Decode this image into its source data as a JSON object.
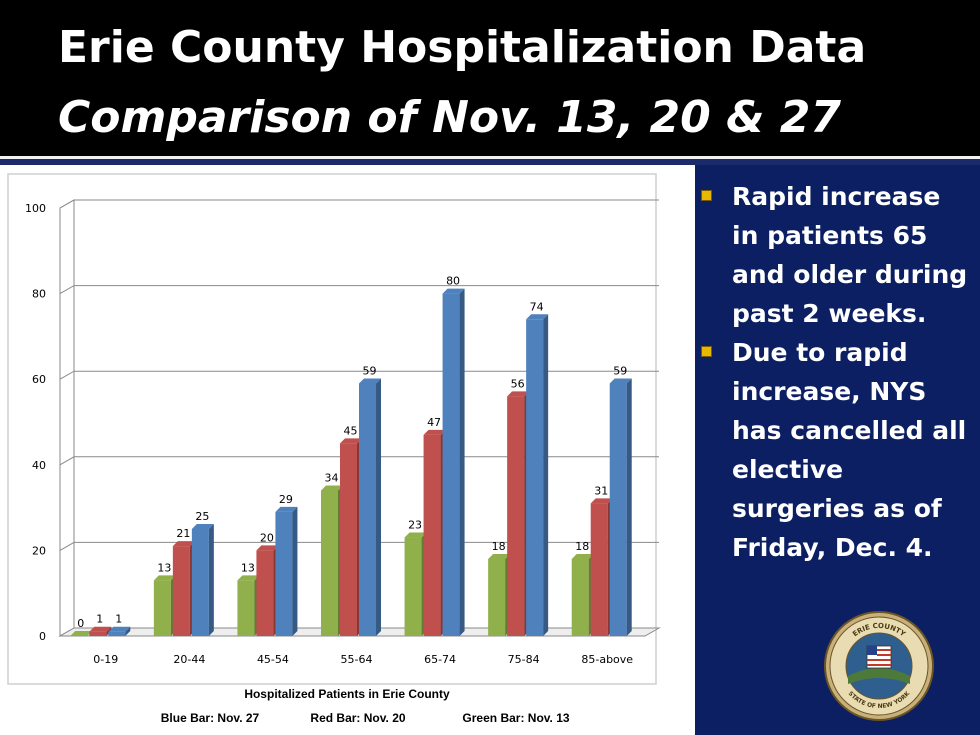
{
  "header": {
    "title": "Erie County Hospitalization Data",
    "subtitle": "Comparison of Nov. 13, 20 & 27"
  },
  "colors": {
    "title_background": "#000000",
    "right_panel_background": "#0b1f62",
    "bullet_marker": "#e8b800",
    "nov13_green": "#8fb04a",
    "nov20_red": "#c0504d",
    "nov27_blue": "#4f81bd"
  },
  "chart_data": {
    "type": "bar",
    "categories": [
      "0-19",
      "20-44",
      "45-54",
      "55-64",
      "65-74",
      "75-84",
      "85-above"
    ],
    "series": [
      {
        "name": "Green Bar: Nov. 13",
        "color": "#8fb04a",
        "values": [
          0,
          13,
          13,
          34,
          23,
          18,
          18
        ]
      },
      {
        "name": "Red Bar: Nov. 20",
        "color": "#c0504d",
        "values": [
          1,
          21,
          20,
          45,
          47,
          56,
          31
        ]
      },
      {
        "name": "Blue Bar: Nov. 27",
        "color": "#4f81bd",
        "values": [
          1,
          25,
          29,
          59,
          80,
          74,
          59
        ]
      }
    ],
    "ylim": [
      0,
      100
    ],
    "yticks": [
      0,
      20,
      40,
      60,
      80,
      100
    ],
    "grid": true,
    "three_d": true,
    "data_labels": true,
    "xlabel": "Hospitalized Patients in Erie County",
    "legend_text": [
      {
        "label": "Blue Bar: Nov. 27"
      },
      {
        "label": "Red Bar: Nov. 20"
      },
      {
        "label": "Green Bar: Nov. 13"
      }
    ],
    "legend_placement": "bottom"
  },
  "bullets": [
    {
      "text": "Rapid increase in patients 65 and older during past 2 weeks."
    },
    {
      "text": "Due to rapid increase, NYS has cancelled all elective surgeries as of Friday, Dec. 4."
    }
  ],
  "seal": {
    "icon": "erie-county-seal-icon",
    "text_top": "ERIE COUNTY",
    "text_bottom": "STATE OF NEW YORK"
  }
}
